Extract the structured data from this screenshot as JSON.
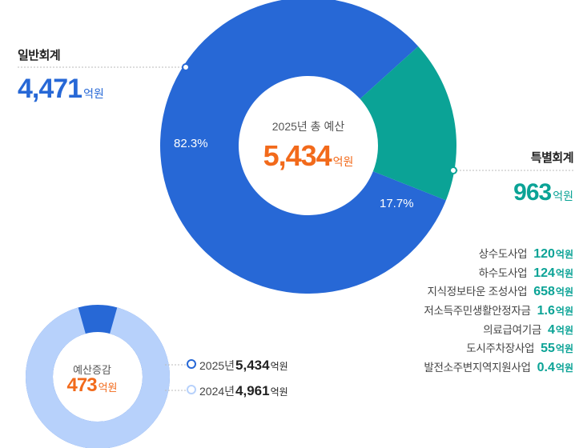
{
  "colors": {
    "general": "#2768d6",
    "special": "#0ba396",
    "accent": "#f26a1b",
    "prev_year": "#b7d1fb"
  },
  "general_account": {
    "title": "일반회계",
    "amount": "4,471",
    "unit": "억원",
    "percent": "82.3%"
  },
  "total": {
    "label": "2025년 총 예산",
    "amount": "5,434",
    "unit": "억원"
  },
  "special_account": {
    "title": "특별회계",
    "amount": "963",
    "unit": "억원",
    "percent": "17.7%",
    "items": [
      {
        "name": "상수도사업",
        "value": "120",
        "unit": "억원"
      },
      {
        "name": "하수도사업",
        "value": "124",
        "unit": "억원"
      },
      {
        "name": "지식정보타운 조성사업",
        "value": "658",
        "unit": "억원"
      },
      {
        "name": "저소득주민생활안정자금",
        "value": "1.6",
        "unit": "억원"
      },
      {
        "name": "의료급여기금",
        "value": "4",
        "unit": "억원"
      },
      {
        "name": "도시주차장사업",
        "value": "55",
        "unit": "억원"
      },
      {
        "name": "발전소주변지역지원사업",
        "value": "0.4",
        "unit": "억원"
      }
    ]
  },
  "budget_change": {
    "label": "예산증감",
    "amount": "473",
    "unit": "억원",
    "rows": [
      {
        "year": "2025년",
        "value": "5,434",
        "unit": "억원"
      },
      {
        "year": "2024년",
        "value": "4,961",
        "unit": "억원"
      }
    ]
  },
  "chart_data": [
    {
      "type": "pie",
      "title": "2025년 총 예산",
      "categories": [
        "일반회계",
        "특별회계"
      ],
      "values": [
        4471,
        963
      ],
      "percentages": [
        82.3,
        17.7
      ],
      "unit": "억원",
      "total": 5434
    },
    {
      "type": "pie",
      "title": "예산증감",
      "categories": [
        "2025년",
        "2024년"
      ],
      "values": [
        5434,
        4961
      ],
      "unit": "억원",
      "difference": 473
    }
  ]
}
